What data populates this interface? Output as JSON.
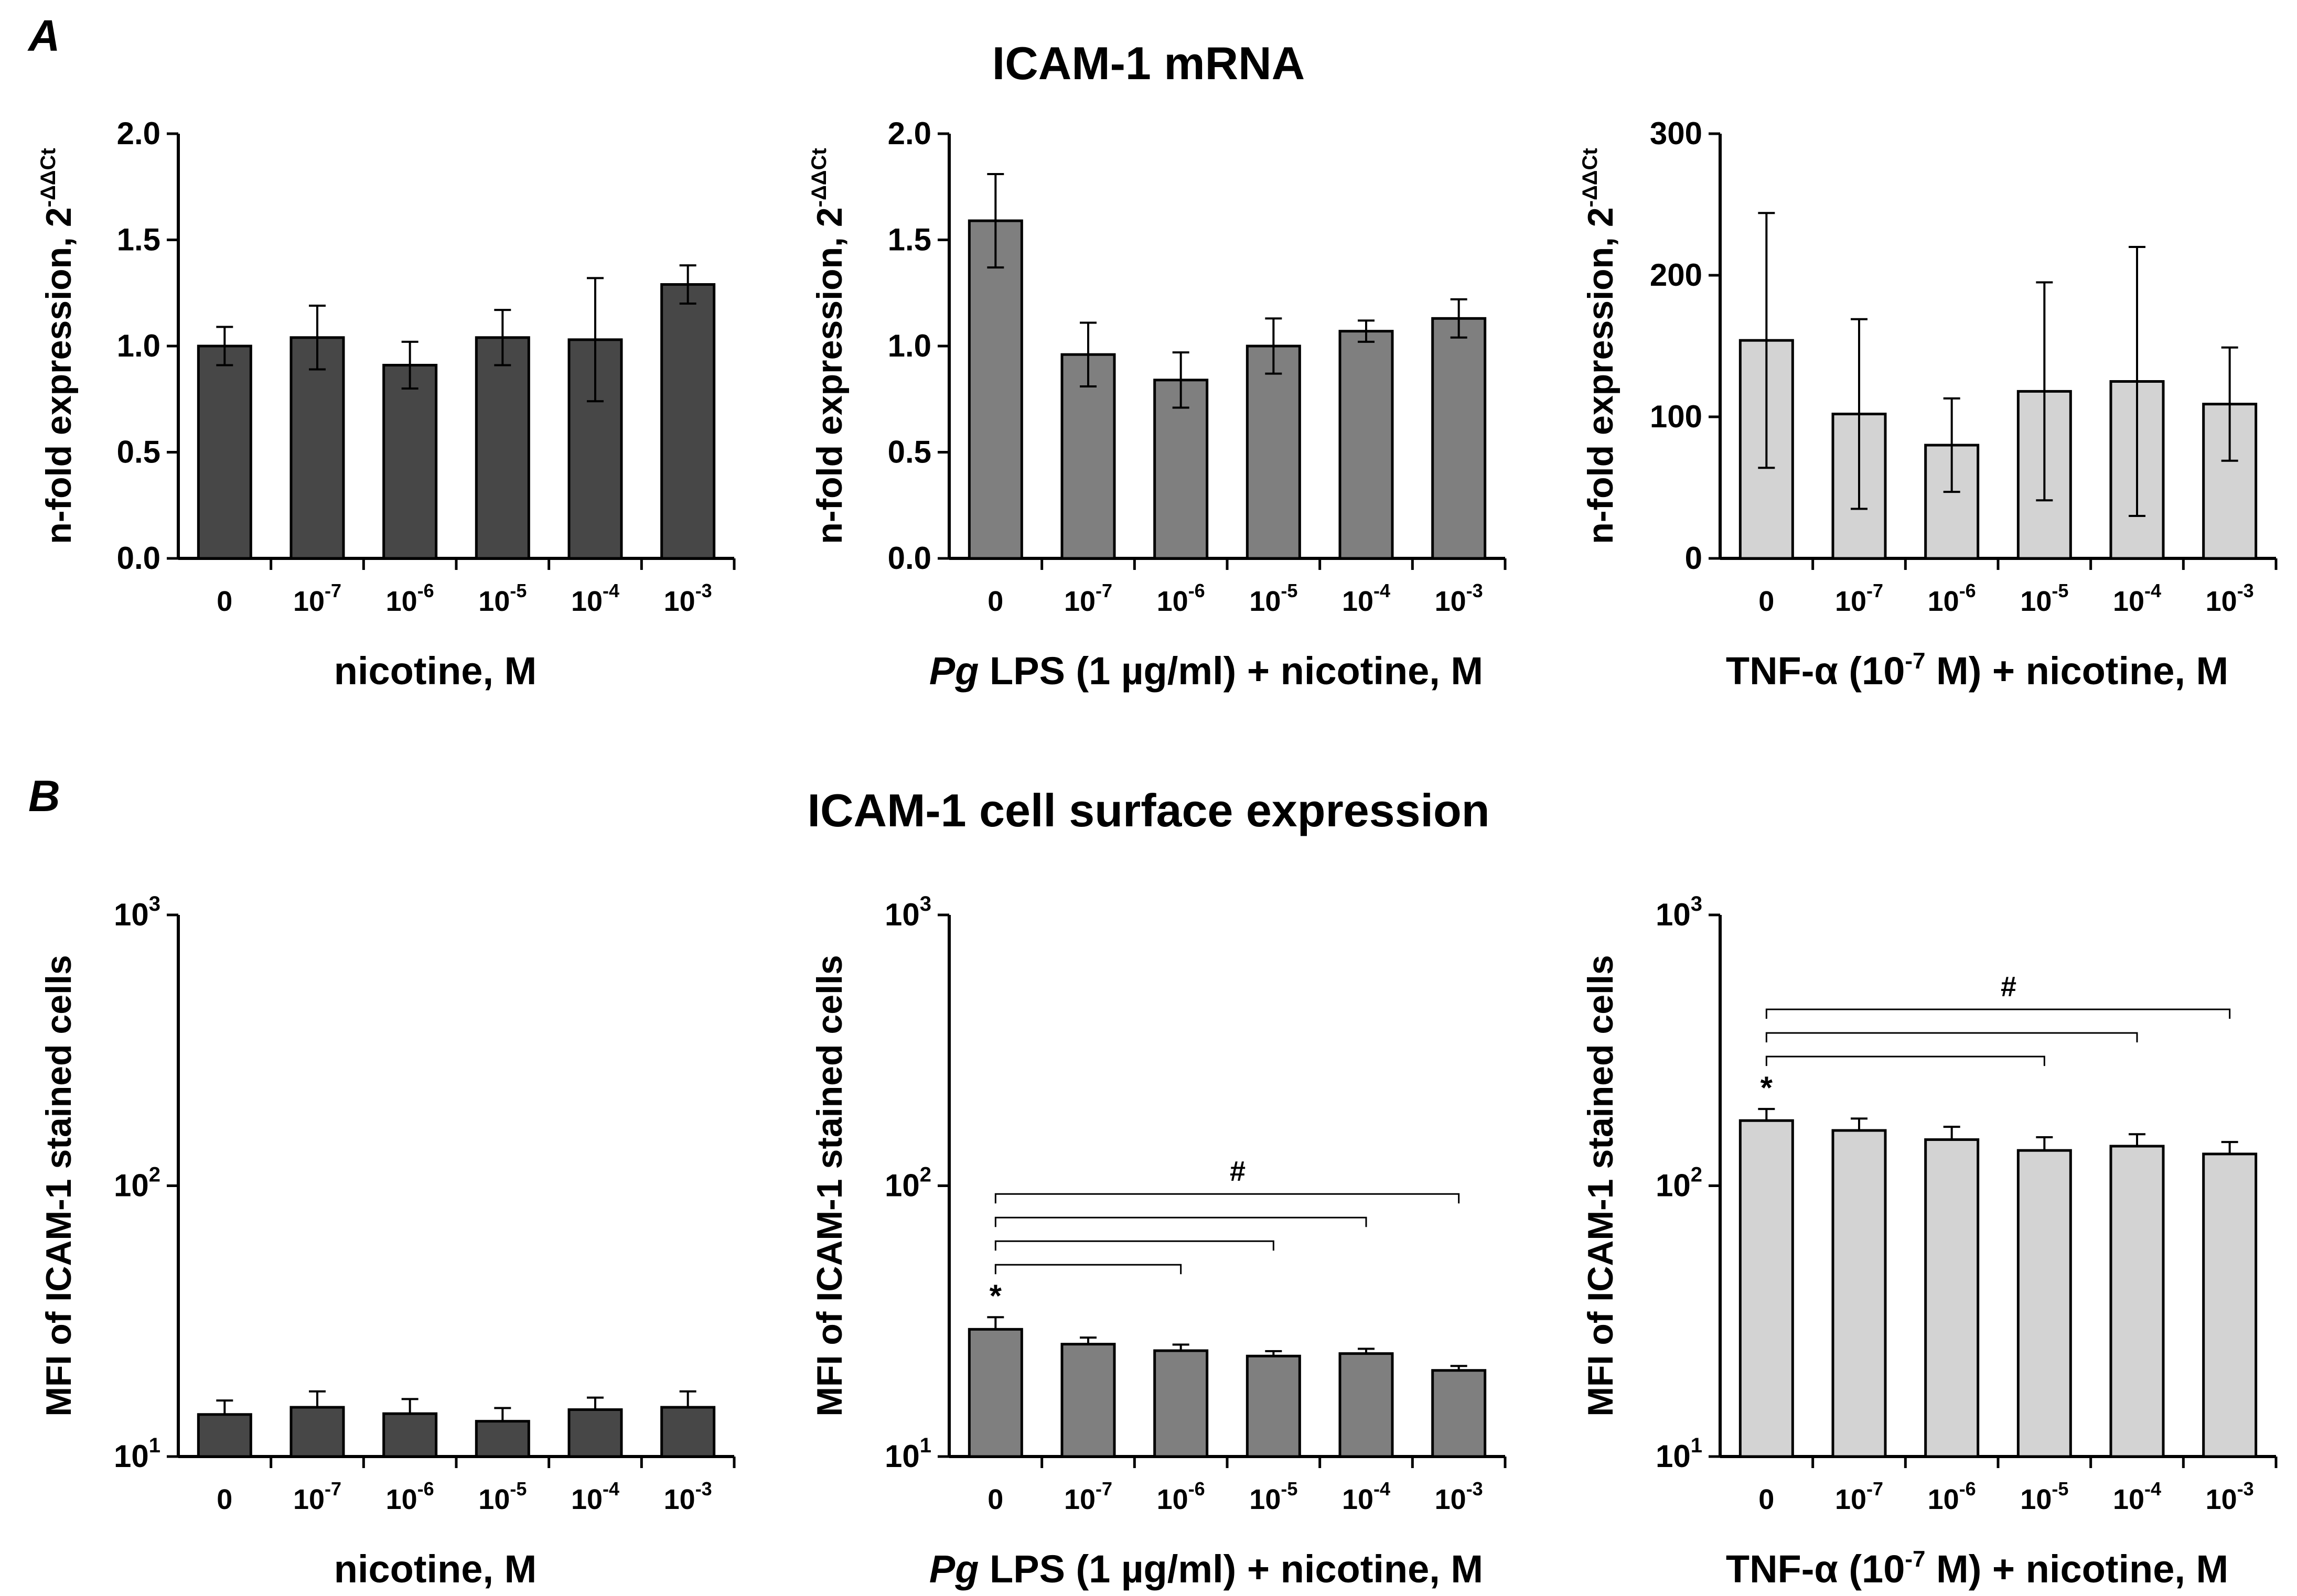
{
  "panels": [
    {
      "letter": "A",
      "title": "ICAM-1 mRNA"
    },
    {
      "letter": "B",
      "title": "ICAM-1 cell surface expression"
    }
  ],
  "categories": [
    "0",
    "10",
    "10",
    "10",
    "10",
    "10"
  ],
  "category_exponents": [
    "",
    "-7",
    "-6",
    "-5",
    "-4",
    "-3"
  ],
  "chart_data": [
    {
      "type": "bar",
      "scale": "linear",
      "ylabel": "n-fold expression, 2",
      "ylabel_sup": "-ΔΔCt",
      "xlabel": [
        "",
        "nicotine, M",
        ""
      ],
      "ylim": [
        0,
        2
      ],
      "yticks": [
        "0.0",
        "0.5",
        "1.0",
        "1.5",
        "2.0"
      ],
      "ytick_values": [
        0,
        0.5,
        1,
        1.5,
        2
      ],
      "color": "#474747",
      "values": [
        1.0,
        1.04,
        0.91,
        1.04,
        1.03,
        1.29
      ],
      "errors": [
        0.09,
        0.15,
        0.11,
        0.13,
        0.29,
        0.09
      ],
      "annotations": []
    },
    {
      "type": "bar",
      "scale": "linear",
      "ylabel": "n-fold expression, 2",
      "ylabel_sup": "-ΔΔCt",
      "xlabel": [
        "Pg",
        " LPS (1 µg/ml) + nicotine, M",
        ""
      ],
      "ylim": [
        0,
        2
      ],
      "yticks": [
        "0.0",
        "0.5",
        "1.0",
        "1.5",
        "2.0"
      ],
      "ytick_values": [
        0,
        0.5,
        1,
        1.5,
        2
      ],
      "color": "#7f7f7f",
      "values": [
        1.59,
        0.96,
        0.84,
        1.0,
        1.07,
        1.13
      ],
      "errors": [
        0.22,
        0.15,
        0.13,
        0.13,
        0.05,
        0.09
      ],
      "annotations": []
    },
    {
      "type": "bar",
      "scale": "linear",
      "ylabel": "n-fold expression, 2",
      "ylabel_sup": "-ΔΔCt",
      "xlabel": [
        "",
        "TNF-α (10",
        "-7",
        " M) + nicotine, M"
      ],
      "ylim": [
        0,
        300
      ],
      "yticks": [
        "0",
        "100",
        "200",
        "300"
      ],
      "ytick_values": [
        0,
        100,
        200,
        300
      ],
      "color": "#d3d3d3",
      "values": [
        154,
        102,
        80,
        118,
        125,
        109
      ],
      "errors": [
        90,
        67,
        33,
        77,
        95,
        40
      ],
      "annotations": []
    },
    {
      "type": "bar",
      "scale": "log",
      "ylabel": "MFI of ICAM-1 stained cells",
      "ylabel_sup": "",
      "xlabel": [
        "",
        "nicotine, M",
        ""
      ],
      "ylim": [
        10,
        1000
      ],
      "yticks": [
        "10",
        "10",
        "10"
      ],
      "ytick_sups": [
        "1",
        "2",
        "3"
      ],
      "ytick_values": [
        10,
        100,
        1000
      ],
      "color": "#474747",
      "values": [
        14.3,
        15.2,
        14.4,
        13.5,
        14.9,
        15.2
      ],
      "errors": [
        1.8,
        2.2,
        1.9,
        1.6,
        1.6,
        2.2
      ],
      "annotations": []
    },
    {
      "type": "bar",
      "scale": "log",
      "ylabel": "MFI of ICAM-1 stained cells",
      "ylabel_sup": "",
      "xlabel": [
        "Pg",
        " LPS (1 µg/ml) + nicotine, M",
        ""
      ],
      "ylim": [
        10,
        1000
      ],
      "yticks": [
        "10",
        "10",
        "10"
      ],
      "ytick_sups": [
        "1",
        "2",
        "3"
      ],
      "ytick_values": [
        10,
        100,
        1000
      ],
      "color": "#7f7f7f",
      "values": [
        29.5,
        26.0,
        24.6,
        23.5,
        24.0,
        20.8
      ],
      "errors": [
        3.2,
        1.5,
        1.3,
        1.0,
        1.0,
        0.8
      ],
      "star": "*",
      "hash": "#",
      "brackets_to": [
        2,
        3,
        4,
        5
      ]
    },
    {
      "type": "bar",
      "scale": "log",
      "ylabel": "MFI of ICAM-1 stained cells",
      "ylabel_sup": "",
      "xlabel": [
        "",
        "TNF-α (10",
        "-7",
        " M) + nicotine, M"
      ],
      "ylim": [
        10,
        1000
      ],
      "yticks": [
        "10",
        "10",
        "10"
      ],
      "ytick_sups": [
        "1",
        "2",
        "3"
      ],
      "ytick_values": [
        10,
        100,
        1000
      ],
      "color": "#d3d3d3",
      "values": [
        174,
        160,
        148,
        135,
        140,
        131
      ],
      "errors": [
        18,
        17,
        17,
        16,
        15,
        14
      ],
      "star": "*",
      "hash": "#",
      "brackets_to": [
        3,
        4,
        5
      ]
    }
  ]
}
